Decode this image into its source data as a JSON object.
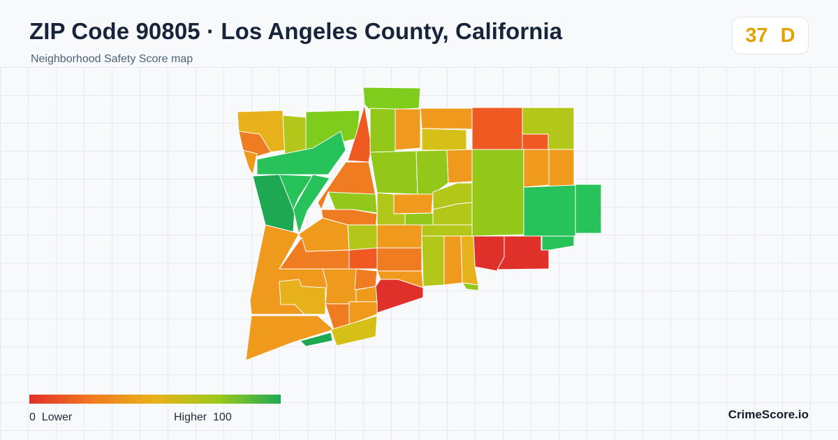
{
  "header": {
    "title": "ZIP Code 90805 · Los Angeles County, California",
    "subtitle": "Neighborhood Safety Score map"
  },
  "score": {
    "value": "37",
    "grade": "D",
    "color": "#e0a300"
  },
  "legend": {
    "min_value": "0",
    "min_label": "Lower",
    "max_label": "Higher",
    "max_value": "100",
    "gradient_colors": [
      "#e0302a",
      "#f07a1f",
      "#e8b21a",
      "#9cc91a",
      "#1faa55"
    ]
  },
  "brand": {
    "name": "CrimeScore.io"
  },
  "map": {
    "palette": {
      "red": "#e0302a",
      "red_orange": "#ef5a22",
      "orange": "#f07c22",
      "amber": "#ef9a1c",
      "gold": "#e6b11a",
      "yellow": "#d6bf16",
      "yellow_green": "#b3c61a",
      "lime": "#93c71a",
      "green": "#7fcc1c",
      "bright_green": "#28c25a",
      "deep_green": "#1ea852"
    }
  }
}
